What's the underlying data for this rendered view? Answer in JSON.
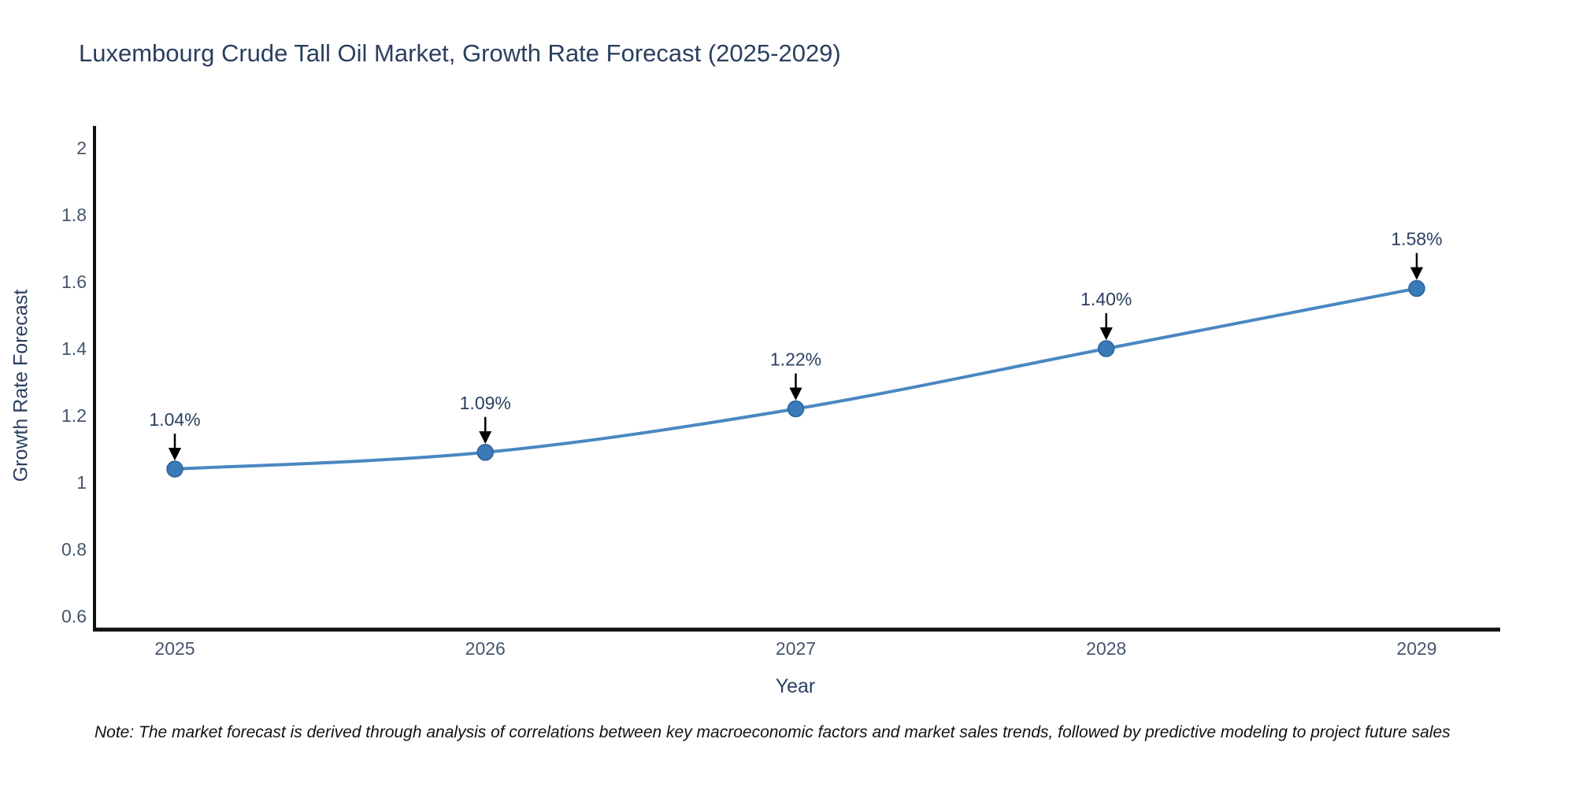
{
  "title": "Luxembourg Crude Tall Oil Market, Growth Rate Forecast (2025-2029)",
  "note": "Note: The market forecast is derived through analysis of correlations between key macroeconomic factors and market sales trends, followed by predictive modeling to project future sales",
  "chart_data": {
    "type": "line",
    "title": "Luxembourg Crude Tall Oil Market, Growth Rate Forecast (2025-2029)",
    "xlabel": "Year",
    "ylabel": "Growth Rate Forecast",
    "categories": [
      "2025",
      "2026",
      "2027",
      "2028",
      "2029"
    ],
    "values": [
      1.04,
      1.09,
      1.22,
      1.4,
      1.58
    ],
    "point_labels": [
      "1.04%",
      "1.09%",
      "1.22%",
      "1.40%",
      "1.58%"
    ],
    "yticks": [
      0.6,
      0.8,
      1,
      1.2,
      1.4,
      1.6,
      1.8,
      2
    ],
    "ytick_labels": [
      "0.6",
      "0.8",
      "1",
      "1.2",
      "1.4",
      "1.6",
      "1.8",
      "2"
    ],
    "ylim": [
      0.56,
      2.07
    ],
    "grid": false,
    "legend": false,
    "line_shape": "spline",
    "colors": {
      "line": "#4a87c2",
      "marker_fill": "#3a7ab8",
      "marker_stroke": "#2e6399",
      "annotation_arrow": "#000000",
      "axis_line": "#111111",
      "title_text": "#2a3f5f",
      "tick_text": "#46566c"
    }
  }
}
